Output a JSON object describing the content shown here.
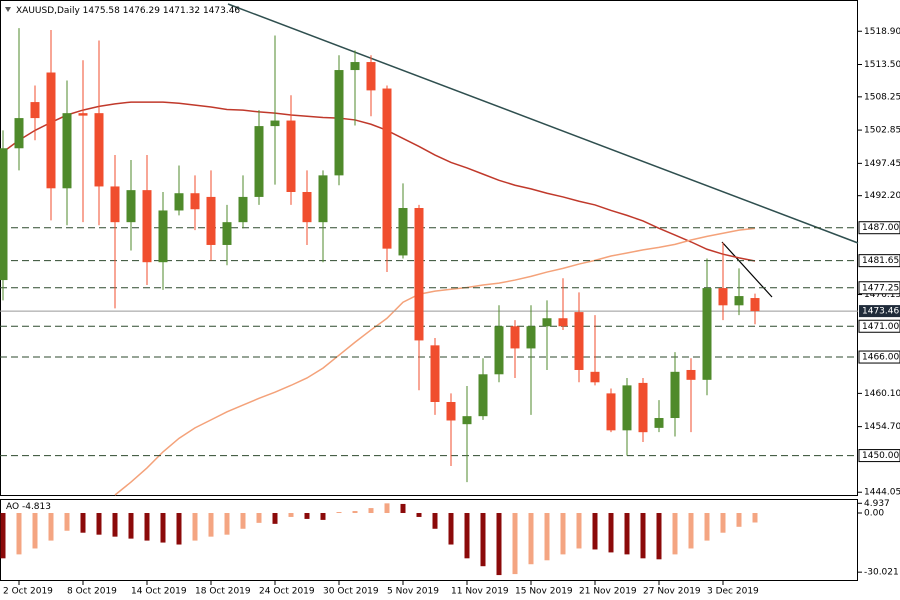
{
  "chart_data": [
    {
      "type": "candlestick",
      "title": "XAUUSD,Daily",
      "categories": [
        null,
        "2 Oct 2019",
        null,
        null,
        null,
        "8 Oct 2019",
        null,
        null,
        null,
        "14 Oct 2019",
        null,
        null,
        null,
        "18 Oct 2019",
        null,
        null,
        null,
        "24 Oct 2019",
        null,
        null,
        null,
        "30 Oct 2019",
        null,
        null,
        null,
        "5 Nov 2019",
        null,
        null,
        null,
        "11 Nov 2019",
        null,
        null,
        null,
        "15 Nov 2019",
        null,
        null,
        null,
        "21 Nov 2019",
        null,
        null,
        null,
        "27 Nov 2019",
        null,
        null,
        null,
        "3 Dec 2019",
        null,
        null
      ],
      "open": [
        1478.5,
        1499.9,
        1507.4,
        1512.2,
        1493.4,
        1505.6,
        1505.6,
        1493.7,
        1487.9,
        1493.1,
        1481.4,
        1489.8,
        1492.6,
        1492.0,
        1484.2,
        1487.9,
        1492.0,
        1503.5,
        1504.4,
        1492.8,
        1487.9,
        1495.5,
        1512.6,
        1513.9,
        1509.6,
        1482.5,
        1490.2,
        1467.9,
        1458.7,
        1455.1,
        1456.4,
        1463.2,
        1471.0,
        1467.4,
        1471.0,
        1472.3,
        1473.3,
        1463.6,
        1460.1,
        1454.1,
        1461.8,
        1454.5,
        1456.1,
        1463.9,
        1462.3,
        1477.2,
        1474.4,
        1475.58
      ],
      "high": [
        1502.8,
        1519.4,
        1510.1,
        1519.1,
        1510.9,
        1514.2,
        1517.4,
        1498.8,
        1498.0,
        1498.8,
        1492.8,
        1497.1,
        1495.5,
        1496.3,
        1490.7,
        1495.5,
        1506.1,
        1518.2,
        1508.5,
        1496.3,
        1496.3,
        1515.0,
        1515.8,
        1515.0,
        1510.1,
        1494.2,
        1490.7,
        1469.1,
        1460.1,
        1461.3,
        1465.8,
        1474.4,
        1472.0,
        1474.4,
        1475.2,
        1478.8,
        1476.5,
        1472.8,
        1460.9,
        1462.6,
        1462.6,
        1459.0,
        1466.8,
        1465.8,
        1482.0,
        1484.6,
        1480.4,
        1476.29
      ],
      "low": [
        1475.2,
        1496.3,
        1501.2,
        1488.2,
        1487.4,
        1487.9,
        1487.4,
        1473.9,
        1483.3,
        1477.7,
        1476.9,
        1489.0,
        1486.6,
        1481.7,
        1480.9,
        1486.9,
        1490.7,
        1494.0,
        1490.7,
        1484.2,
        1481.4,
        1493.9,
        1503.6,
        1505.1,
        1479.8,
        1482.0,
        1460.6,
        1456.6,
        1448.3,
        1445.7,
        1455.8,
        1461.9,
        1462.6,
        1456.6,
        1463.9,
        1470.4,
        1461.9,
        1461.4,
        1453.8,
        1450.0,
        1452.2,
        1453.8,
        1453.1,
        1453.8,
        1459.8,
        1472.0,
        1472.8,
        1471.32
      ],
      "close": [
        1499.9,
        1504.8,
        1504.8,
        1493.4,
        1505.6,
        1505.2,
        1493.7,
        1487.9,
        1493.1,
        1481.4,
        1489.8,
        1492.6,
        1490.0,
        1484.2,
        1487.9,
        1492.0,
        1503.5,
        1504.4,
        1492.8,
        1487.9,
        1495.5,
        1512.6,
        1513.9,
        1509.3,
        1483.6,
        1490.2,
        1468.7,
        1458.7,
        1455.7,
        1456.4,
        1463.2,
        1471.0,
        1467.4,
        1471.0,
        1472.3,
        1471.0,
        1463.9,
        1461.9,
        1454.1,
        1461.4,
        1453.8,
        1456.1,
        1463.6,
        1462.3,
        1477.2,
        1474.4,
        1475.9,
        1473.46
      ],
      "up_color": "#4f8a2b",
      "down_color": "#f04e2e",
      "lines": [
        {
          "color": "#c0392b",
          "values": [
            1499.3,
            1501.2,
            1502.8,
            1504.1,
            1505.3,
            1506.1,
            1506.7,
            1507.1,
            1507.4,
            1507.4,
            1507.4,
            1507.2,
            1506.9,
            1506.6,
            1506.2,
            1506.1,
            1505.8,
            1505.6,
            1505.3,
            1505.1,
            1504.9,
            1504.8,
            1504.5,
            1503.8,
            1502.8,
            1501.5,
            1500.2,
            1498.8,
            1497.6,
            1496.7,
            1495.7,
            1494.7,
            1493.9,
            1493.3,
            1492.6,
            1492.0,
            1491.3,
            1490.7,
            1489.8,
            1489.0,
            1488.1,
            1486.9,
            1485.8,
            1484.7,
            1483.5,
            1482.7,
            1482.1,
            1481.6
          ]
        },
        {
          "color": "#f4a27a",
          "values": [
            null,
            null,
            null,
            null,
            null,
            null,
            null,
            1443.6,
            1445.7,
            1448.0,
            1450.6,
            1452.8,
            1454.5,
            1455.8,
            1457.1,
            1458.2,
            1459.3,
            1460.3,
            1461.4,
            1462.6,
            1464.2,
            1466.3,
            1468.4,
            1470.4,
            1472.3,
            1474.9,
            1476.2,
            1476.7,
            1477.0,
            1477.3,
            1477.7,
            1478.0,
            1478.5,
            1479.1,
            1479.8,
            1480.4,
            1481.1,
            1481.7,
            1482.4,
            1482.9,
            1483.4,
            1483.8,
            1484.3,
            1485.0,
            1485.6,
            1486.1,
            1486.6,
            1486.9
          ]
        }
      ],
      "levels": [
        {
          "value": 1487,
          "label": "1487.00"
        },
        {
          "value": 1481.65,
          "label": "1481.65"
        },
        {
          "value": 1477.25,
          "label": "1477.25"
        },
        {
          "value": 1471,
          "label": "1471.00"
        },
        {
          "value": 1466,
          "label": "1466.00"
        },
        {
          "value": 1450,
          "label": "1450.00"
        }
      ],
      "ylim": [
        1443.6,
        1523.0
      ],
      "yticks": [
        {
          "value": 1518.9,
          "label": "1518.90"
        },
        {
          "value": 1513.5,
          "label": "1513.50"
        },
        {
          "value": 1508.25,
          "label": "1508.25"
        },
        {
          "value": 1502.85,
          "label": "1502.85"
        },
        {
          "value": 1497.45,
          "label": "1497.45"
        },
        {
          "value": 1492.2,
          "label": "1492.20"
        },
        {
          "value": 1476.15,
          "label": "1476.15"
        },
        {
          "value": 1460.1,
          "label": "1460.10"
        },
        {
          "value": 1454.7,
          "label": "1454.70"
        },
        {
          "value": 1444.05,
          "label": "1444.05"
        }
      ]
    },
    {
      "type": "bar",
      "title": "AO",
      "values": [
        -23,
        -21,
        -18,
        -14,
        -9,
        -10,
        -11,
        -12,
        -13,
        -14,
        -15,
        -16,
        -14,
        -12,
        -11,
        -8,
        -5,
        -5.5,
        -2,
        -3,
        -3.5,
        0.5,
        1,
        2.5,
        4.9,
        4.6,
        -2,
        -8,
        -16,
        -23,
        -27,
        -31.5,
        -31,
        -26,
        -24,
        -21,
        -18,
        -18.5,
        -20,
        -21,
        -23,
        -23.5,
        -21,
        -18,
        -14,
        -10,
        -7,
        -4.813
      ],
      "up_color": "#f4a582",
      "down_color": "#8b0a0a",
      "ylim": [
        -34,
        6.6
      ],
      "yticks": [
        4.937,
        {
          "value": 0,
          "label": "0.00"
        },
        -30.021
      ]
    }
  ]
}
